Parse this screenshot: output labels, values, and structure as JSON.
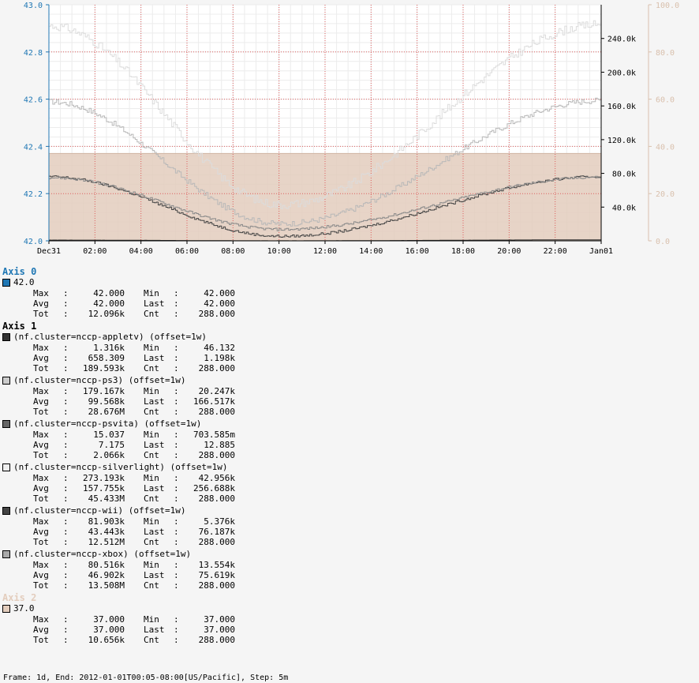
{
  "chart_data": {
    "type": "line",
    "x_ticks": [
      "Dec31",
      "02:00",
      "04:00",
      "06:00",
      "08:00",
      "10:00",
      "12:00",
      "14:00",
      "16:00",
      "18:00",
      "20:00",
      "22:00",
      "Jan01"
    ],
    "axes": [
      {
        "name": "Axis 0",
        "side": "left",
        "range": [
          42.0,
          43.0
        ],
        "ticks": [
          "42.0",
          "42.2",
          "42.4",
          "42.6",
          "42.8",
          "43.0"
        ],
        "color": "#1f77b4"
      },
      {
        "name": "Axis 1",
        "side": "right",
        "range": [
          0,
          280000
        ],
        "ticks": [
          "40.0k",
          "80.0k",
          "120.0k",
          "160.0k",
          "200.0k",
          "240.0k"
        ],
        "tick_values": [
          40000,
          80000,
          120000,
          160000,
          200000,
          240000
        ],
        "color": "#000000"
      },
      {
        "name": "Axis 2",
        "side": "right",
        "range": [
          0,
          100
        ],
        "ticks": [
          "0.0",
          "20.0",
          "40.0",
          "60.0",
          "80.0",
          "100.0"
        ],
        "color": "#d9c0ad"
      }
    ],
    "series": [
      {
        "axis": 0,
        "name": "42.0",
        "color": "#1f77b4",
        "shape": "constant",
        "value": 42.0
      },
      {
        "axis": 1,
        "name": "(nf.cluster=nccp-appletv) (offset=1w)",
        "color": "#333333",
        "shape": "diurnal",
        "value_at_start": 900,
        "value_at_min": 46,
        "value_at_end": 1198
      },
      {
        "axis": 1,
        "name": "(nf.cluster=nccp-ps3) (offset=1w)",
        "color": "#cccccc",
        "shape": "diurnal",
        "value_at_start": 165000,
        "value_at_min": 20247,
        "value_at_end": 166517
      },
      {
        "axis": 1,
        "name": "(nf.cluster=nccp-psvita) (offset=1w)",
        "color": "#666666",
        "shape": "diurnal",
        "value_at_start": 12,
        "value_at_min": 0.7,
        "value_at_end": 12.885
      },
      {
        "axis": 1,
        "name": "(nf.cluster=nccp-silverlight) (offset=1w)",
        "color": "#eeeeee",
        "shape": "diurnal",
        "value_at_start": 255000,
        "value_at_min": 42956,
        "value_at_end": 256688
      },
      {
        "axis": 1,
        "name": "(nf.cluster=nccp-wii) (offset=1w)",
        "color": "#444444",
        "shape": "diurnal",
        "value_at_start": 76000,
        "value_at_min": 5376,
        "value_at_end": 76187
      },
      {
        "axis": 1,
        "name": "(nf.cluster=nccp-xbox) (offset=1w)",
        "color": "#aaaaaa",
        "shape": "diurnal",
        "value_at_start": 75000,
        "value_at_min": 13554,
        "value_at_end": 75619
      },
      {
        "axis": 2,
        "name": "37.0",
        "color": "#e3cdbd",
        "shape": "area",
        "value": 37.0
      }
    ]
  },
  "legend": [
    {
      "title": "Axis 0",
      "title_color": "#1f77b4",
      "entries": [
        {
          "label": "42.0",
          "color": "#1f77b4",
          "rows": [
            [
              "Max",
              "42.000",
              "Min",
              "42.000"
            ],
            [
              "Avg",
              "42.000",
              "Last",
              "42.000"
            ],
            [
              "Tot",
              "12.096k",
              "Cnt",
              "288.000"
            ]
          ]
        }
      ]
    },
    {
      "title": "Axis 1",
      "title_color": "#000000",
      "entries": [
        {
          "label": "(nf.cluster=nccp-appletv) (offset=1w)",
          "color": "#333333",
          "rows": [
            [
              "Max",
              "1.316k",
              "Min",
              "46.132"
            ],
            [
              "Avg",
              "658.309",
              "Last",
              "1.198k"
            ],
            [
              "Tot",
              "189.593k",
              "Cnt",
              "288.000"
            ]
          ]
        },
        {
          "label": "(nf.cluster=nccp-ps3) (offset=1w)",
          "color": "#cccccc",
          "rows": [
            [
              "Max",
              "179.167k",
              "Min",
              "20.247k"
            ],
            [
              "Avg",
              "99.568k",
              "Last",
              "166.517k"
            ],
            [
              "Tot",
              "28.676M",
              "Cnt",
              "288.000"
            ]
          ]
        },
        {
          "label": "(nf.cluster=nccp-psvita) (offset=1w)",
          "color": "#666666",
          "rows": [
            [
              "Max",
              "15.037",
              "Min",
              "703.585m"
            ],
            [
              "Avg",
              "7.175",
              "Last",
              "12.885"
            ],
            [
              "Tot",
              "2.066k",
              "Cnt",
              "288.000"
            ]
          ]
        },
        {
          "label": "(nf.cluster=nccp-silverlight) (offset=1w)",
          "color": "#eeeeee",
          "rows": [
            [
              "Max",
              "273.193k",
              "Min",
              "42.956k"
            ],
            [
              "Avg",
              "157.755k",
              "Last",
              "256.688k"
            ],
            [
              "Tot",
              "45.433M",
              "Cnt",
              "288.000"
            ]
          ]
        },
        {
          "label": "(nf.cluster=nccp-wii) (offset=1w)",
          "color": "#444444",
          "rows": [
            [
              "Max",
              "81.903k",
              "Min",
              "5.376k"
            ],
            [
              "Avg",
              "43.443k",
              "Last",
              "76.187k"
            ],
            [
              "Tot",
              "12.512M",
              "Cnt",
              "288.000"
            ]
          ]
        },
        {
          "label": "(nf.cluster=nccp-xbox) (offset=1w)",
          "color": "#aaaaaa",
          "rows": [
            [
              "Max",
              "80.516k",
              "Min",
              "13.554k"
            ],
            [
              "Avg",
              "46.902k",
              "Last",
              "75.619k"
            ],
            [
              "Tot",
              "13.508M",
              "Cnt",
              "288.000"
            ]
          ]
        }
      ]
    },
    {
      "title": "Axis 2",
      "title_color": "#e3cdbd",
      "entries": [
        {
          "label": "37.0",
          "color": "#e3cdbd",
          "rows": [
            [
              "Max",
              "37.000",
              "Min",
              "37.000"
            ],
            [
              "Avg",
              "37.000",
              "Last",
              "37.000"
            ],
            [
              "Tot",
              "10.656k",
              "Cnt",
              "288.000"
            ]
          ]
        }
      ]
    }
  ],
  "footer": "Frame: 1d, End: 2012-01-01T00:05-08:00[US/Pacific], Step: 5m"
}
